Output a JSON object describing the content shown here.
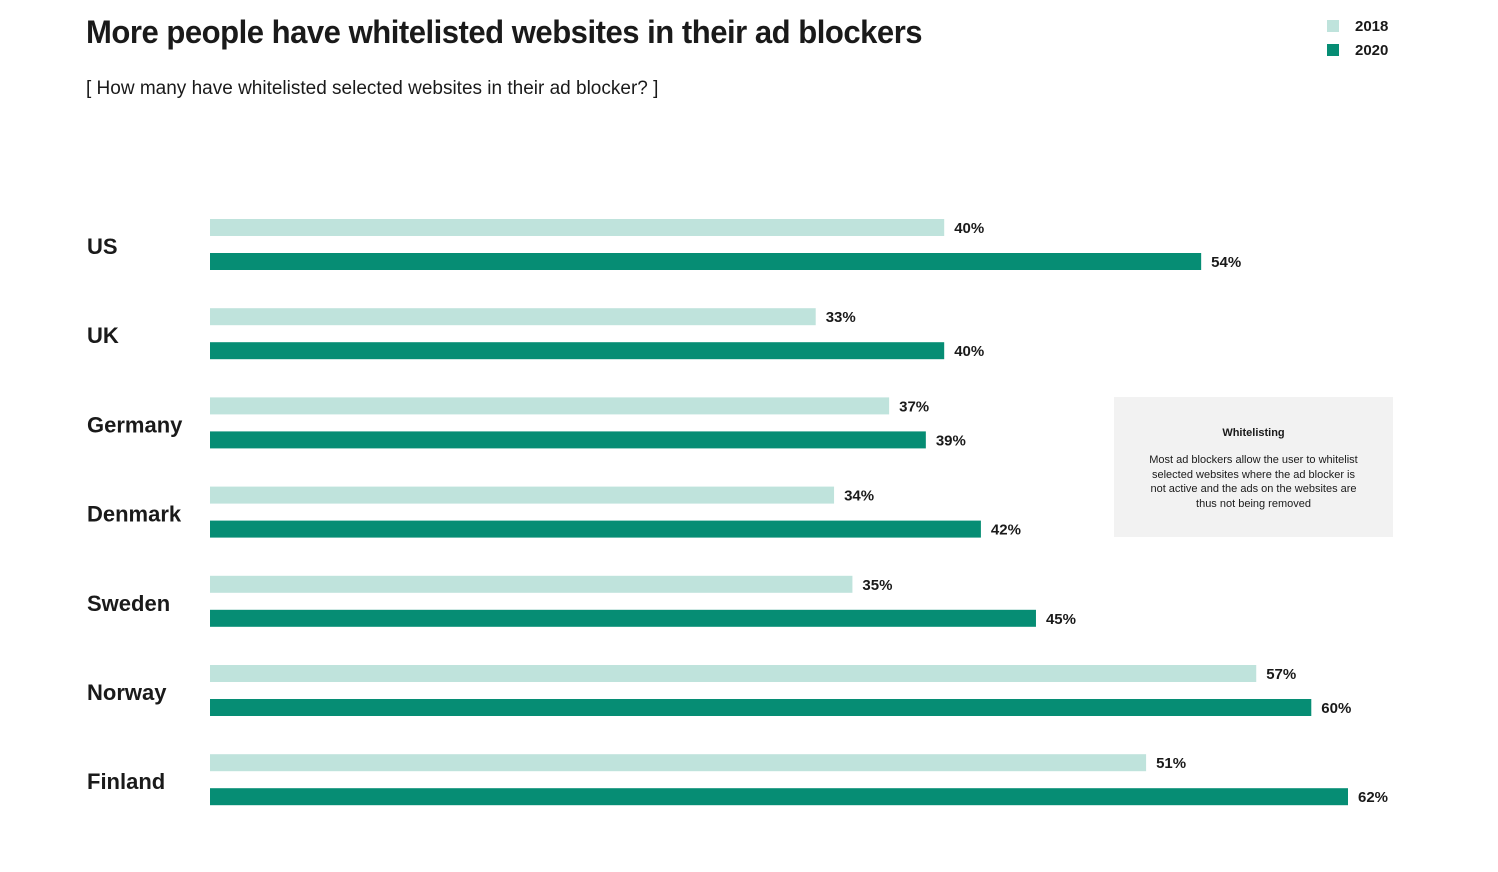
{
  "chart_data": {
    "type": "bar",
    "orientation": "horizontal",
    "title": "More people have whitelisted websites in their ad blockers",
    "subtitle": "[ How many have whitelisted selected websites in their ad blocker? ]",
    "categories": [
      "US",
      "UK",
      "Germany",
      "Denmark",
      "Sweden",
      "Norway",
      "Finland"
    ],
    "series": [
      {
        "name": "2018",
        "color": "#bfe3dc",
        "values": [
          40,
          33,
          37,
          34,
          35,
          57,
          51
        ]
      },
      {
        "name": "2020",
        "color": "#068d74",
        "values": [
          54,
          40,
          39,
          42,
          45,
          60,
          62
        ]
      }
    ],
    "value_suffix": "%",
    "xlim": [
      0,
      62
    ],
    "grid": false,
    "legend": "top-right",
    "annotation": {
      "title": "Whitelisting",
      "body": "Most ad blockers allow the user to whitelist selected websites where the ad blocker is not active and the ads on the websites are thus not being removed"
    }
  }
}
